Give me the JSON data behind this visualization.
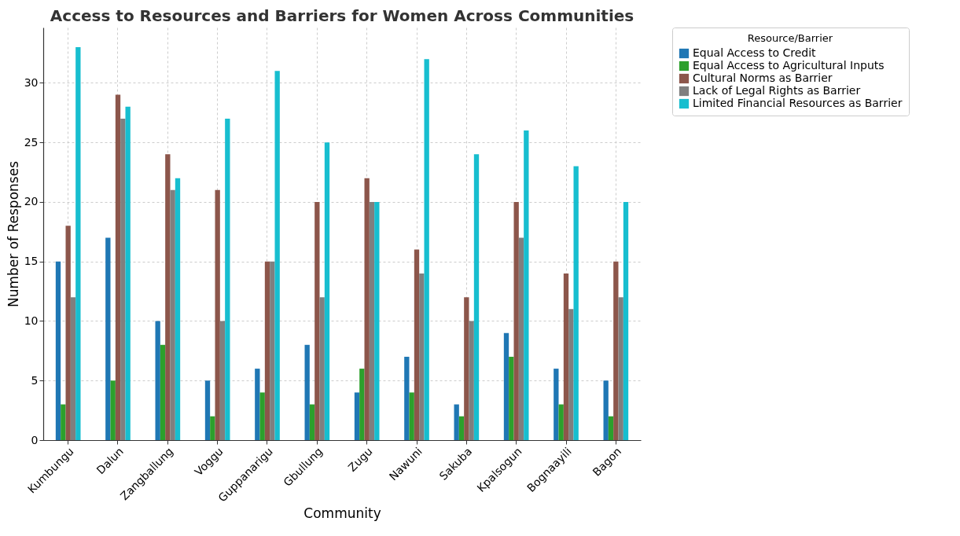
{
  "chart_data": {
    "type": "bar",
    "title": "Access to Resources and Barriers for Women Across Communities",
    "xlabel": "Community",
    "ylabel": "Number of Responses",
    "legend_title": "Resource/Barrier",
    "categories": [
      "Kumbungu",
      "Dalun",
      "Zangballung",
      "Voggu",
      "Guppanarigu",
      "Gbullung",
      "Zugu",
      "Nawuni",
      "Sakuba",
      "Kpalsogun",
      "Bognaayili",
      "Bagon"
    ],
    "series": [
      {
        "name": "Equal Access to Credit",
        "color": "#1f77b4",
        "values": [
          15,
          17,
          10,
          5,
          6,
          8,
          4,
          7,
          3,
          9,
          6,
          5
        ]
      },
      {
        "name": "Equal Access to Agricultural Inputs",
        "color": "#2ca02c",
        "values": [
          3,
          5,
          8,
          2,
          4,
          3,
          6,
          4,
          2,
          7,
          3,
          2
        ]
      },
      {
        "name": "Cultural Norms as Barrier",
        "color": "#8c564b",
        "values": [
          18,
          29,
          24,
          21,
          15,
          20,
          22,
          16,
          12,
          20,
          14,
          15
        ]
      },
      {
        "name": "Lack of Legal Rights as Barrier",
        "color": "#7f7f7f",
        "values": [
          12,
          27,
          21,
          10,
          15,
          12,
          20,
          14,
          10,
          17,
          11,
          12
        ]
      },
      {
        "name": "Limited Financial Resources as Barrier",
        "color": "#17becf",
        "values": [
          33,
          28,
          22,
          27,
          31,
          25,
          20,
          32,
          24,
          26,
          23,
          20
        ]
      }
    ],
    "ylim": [
      0,
      34.65
    ],
    "yticks": [
      0,
      5,
      10,
      15,
      20,
      25,
      30
    ],
    "grid": true,
    "legend": "top right"
  }
}
